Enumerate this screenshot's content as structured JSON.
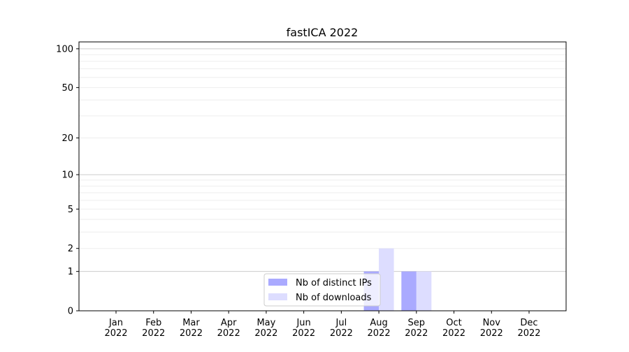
{
  "chart_data": {
    "type": "bar",
    "title": "fastICA 2022",
    "xlabel": "",
    "ylabel": "",
    "y_scale": "log(1+y)",
    "ylim": [
      0,
      113
    ],
    "y_ticks": [
      0,
      1,
      2,
      5,
      10,
      20,
      50,
      100
    ],
    "grid": "horizontal, major and minor",
    "legend_placement": "lower-center",
    "categories": [
      "Jan\n2022",
      "Feb\n2022",
      "Mar\n2022",
      "Apr\n2022",
      "May\n2022",
      "Jun\n2022",
      "Jul\n2022",
      "Aug\n2022",
      "Sep\n2022",
      "Oct\n2022",
      "Nov\n2022",
      "Dec\n2022"
    ],
    "series": [
      {
        "name": "Nb of distinct IPs",
        "color": "#aaaaff",
        "values": [
          0,
          0,
          0,
          0,
          0,
          0,
          0,
          1,
          1,
          0,
          0,
          0
        ]
      },
      {
        "name": "Nb of downloads",
        "color": "#ddddff",
        "values": [
          0,
          0,
          0,
          0,
          0,
          0,
          0,
          2,
          1,
          0,
          0,
          0
        ]
      }
    ]
  }
}
